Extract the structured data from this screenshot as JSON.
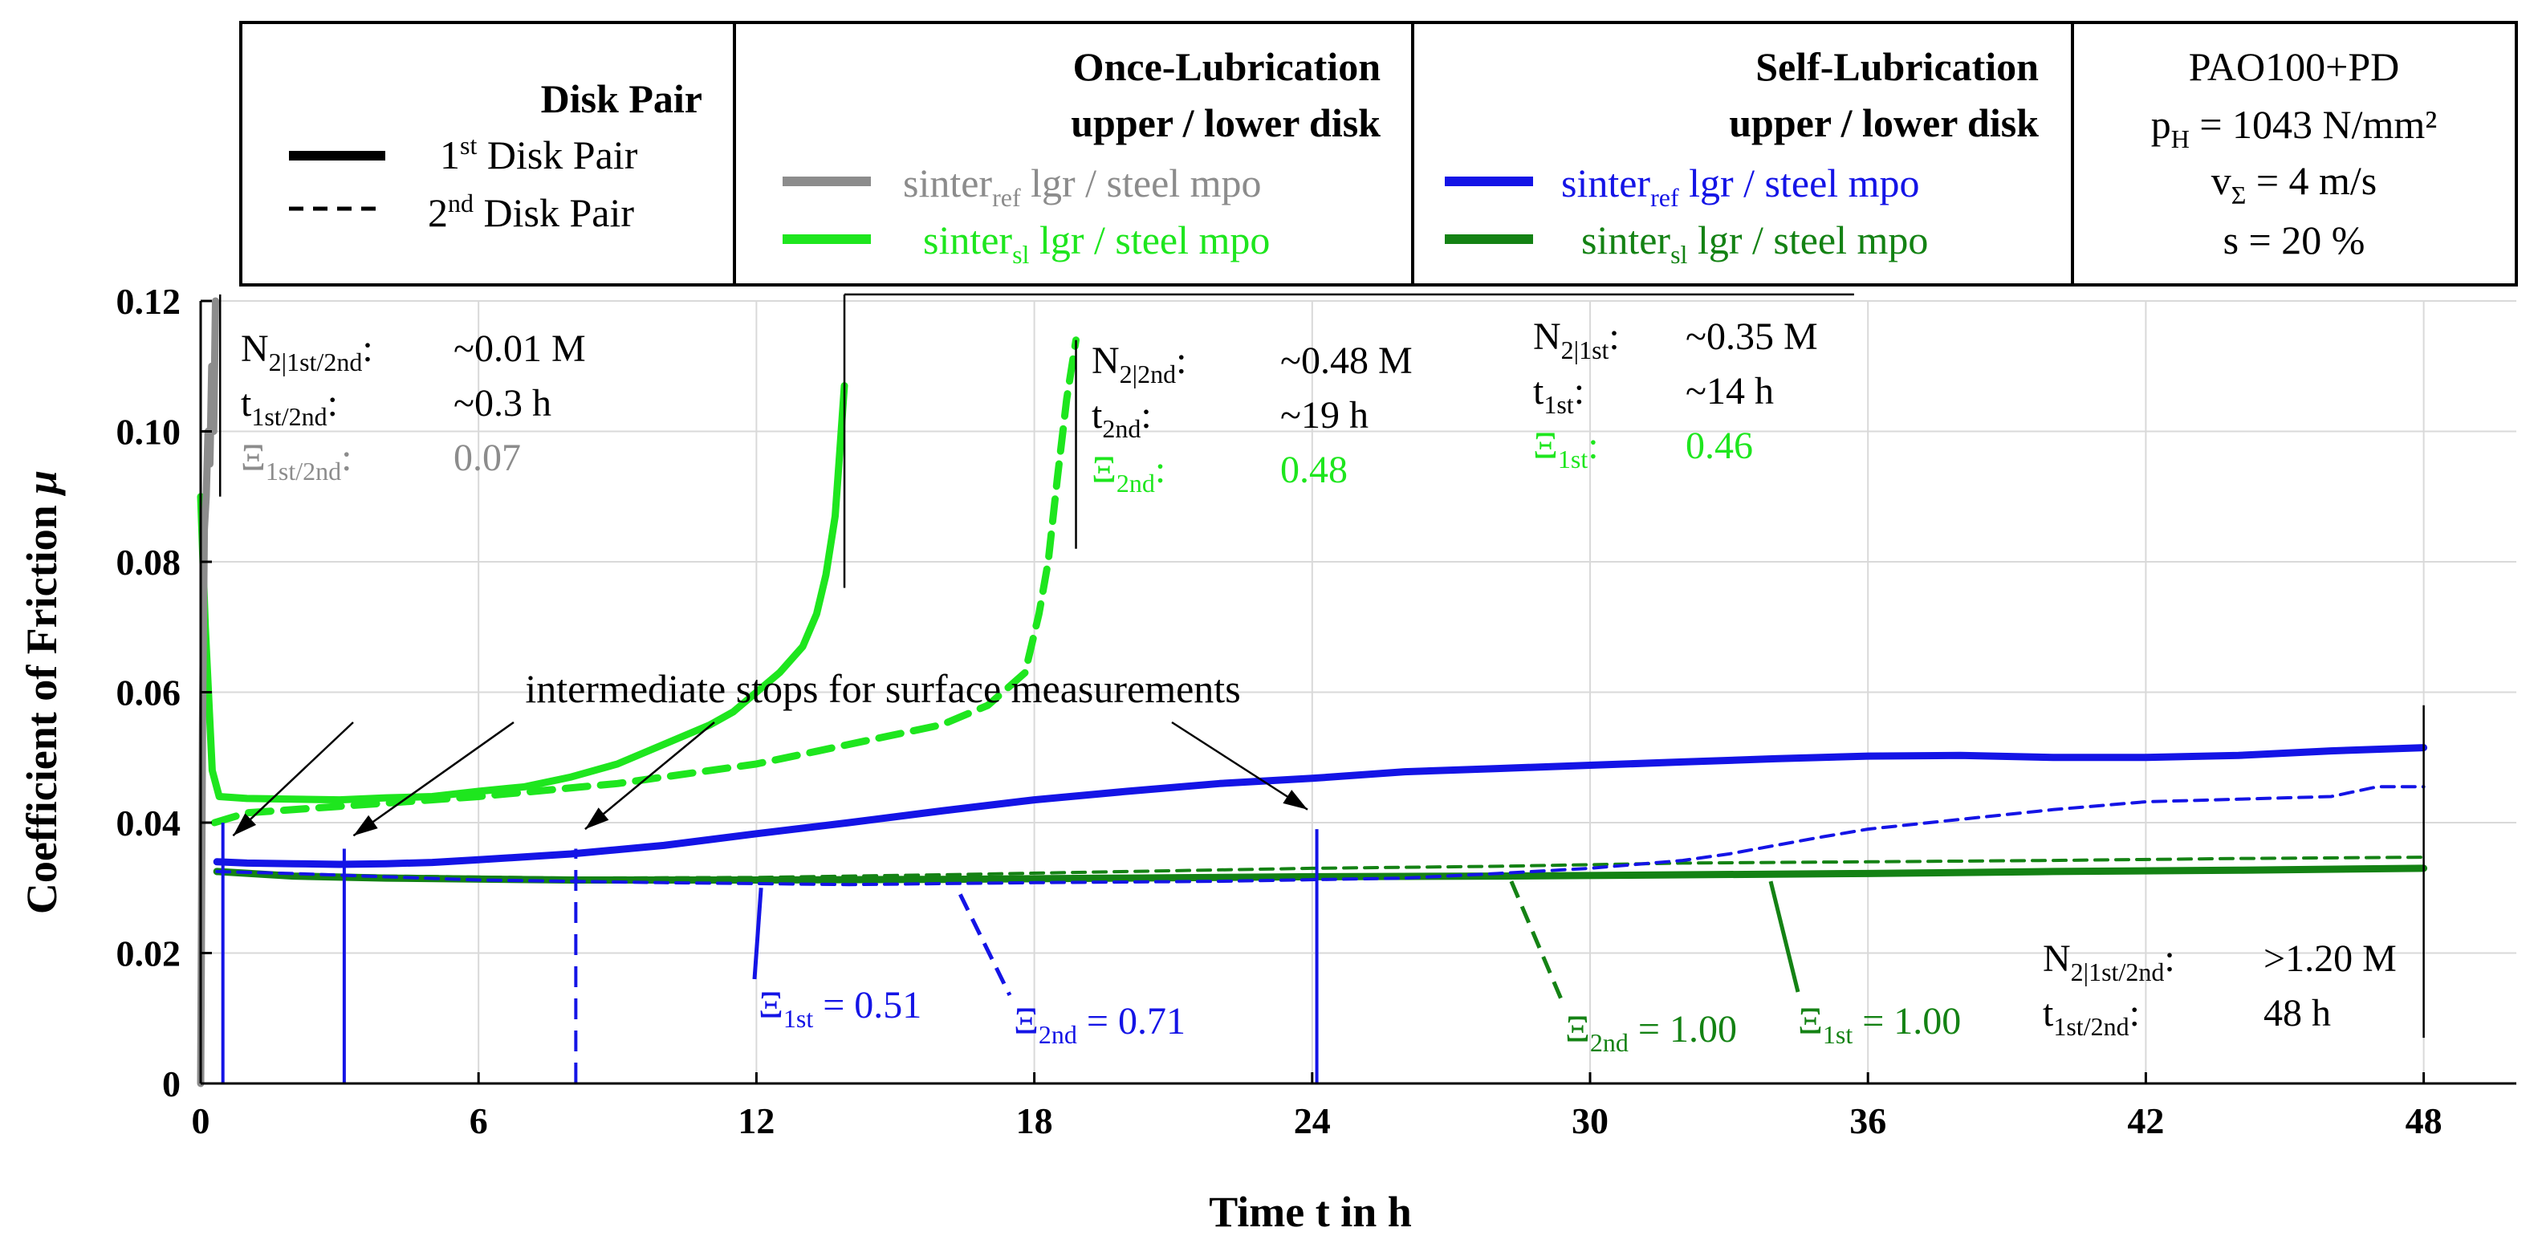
{
  "chart_data": {
    "type": "line",
    "xlabel": "Time t in h",
    "ylabel": "Coefficient of Friction",
    "ylabel_symbol": "μ",
    "xlim": [
      0,
      50
    ],
    "ylim": [
      0,
      0.12
    ],
    "x_ticks": [
      0,
      6,
      12,
      18,
      24,
      30,
      36,
      42,
      48
    ],
    "y_ticks": [
      0,
      0.02,
      0.04,
      0.06,
      0.08,
      0.1,
      0.12
    ],
    "y_tick_labels": [
      "0",
      "0.02",
      "0.04",
      "0.06",
      "0.08",
      "0.10",
      "0.12"
    ],
    "grid": true,
    "legend": {
      "disk_pair_title": "Disk Pair",
      "pair1": {
        "base": "1",
        "sup": "st",
        "text": " Disk Pair"
      },
      "pair2": {
        "base": "2",
        "sup": "nd",
        "text": " Disk Pair"
      },
      "once_title_1": "Once-Lubrication",
      "once_title_2": "upper / lower disk",
      "self_title_1": "Self-Lubrication",
      "self_title_2": "upper / lower disk",
      "entries": {
        "ref_once": {
          "a": "sinter",
          "sub": "ref",
          "b": " lgr / steel mpo"
        },
        "sl_once": {
          "a": "sinter",
          "sub": "sl",
          "b": " lgr / steel mpo"
        },
        "ref_self": {
          "a": "sinter",
          "sub": "ref",
          "b": " lgr / steel mpo"
        },
        "sl_self": {
          "a": "sinter",
          "sub": "sl",
          "b": " lgr / steel mpo"
        }
      },
      "conditions": {
        "line1": "PAO100+PD",
        "line2": {
          "a": "p",
          "sub": "H",
          "b": " = 1043 N/mm²"
        },
        "line3": {
          "a": "v",
          "sub": "Σ",
          "b": " = 4 m/s"
        },
        "line4": "s = 20 %"
      }
    },
    "colors": {
      "gray": "#8c8c8c",
      "light_green": "#1ee61e",
      "blue": "#1414e6",
      "dark_green": "#148214",
      "black": "#000000"
    },
    "annotation_text": "intermediate stops for surface measurements",
    "annotation_arrow_targets": [
      {
        "x": 0.7,
        "y": 0.038
      },
      {
        "x": 3.3,
        "y": 0.038
      },
      {
        "x": 8.3,
        "y": 0.039
      },
      {
        "x": 23.9,
        "y": 0.042
      }
    ],
    "info_blocks": {
      "b1": {
        "r1": {
          "a": "N",
          "sub": "2|1st/2nd",
          "b": ":",
          "val": "~0.01 M"
        },
        "r2": {
          "a": "t",
          "sub": "1st/2nd",
          "b": ":",
          "val": "~0.3 h"
        },
        "r3": {
          "a": "Ξ",
          "sub": "1st/2nd",
          "b": ":",
          "val": "0.07"
        }
      },
      "b2": {
        "r1": {
          "a": "N",
          "sub": "2|2nd",
          "b": ":",
          "val": "~0.48 M"
        },
        "r2": {
          "a": "t",
          "sub": "2nd",
          "b": ":",
          "val": "~19 h"
        },
        "r3": {
          "a": "Ξ",
          "sub": "2nd",
          "b": ":",
          "val": "0.48"
        }
      },
      "b3": {
        "r1": {
          "a": "N",
          "sub": "2|1st",
          "b": ":",
          "val": "~0.35 M"
        },
        "r2": {
          "a": "t",
          "sub": "1st",
          "b": ":",
          "val": "~14 h"
        },
        "r3": {
          "a": "Ξ",
          "sub": "1st",
          "b": ":",
          "val": "0.46"
        }
      },
      "b4": {
        "r1": {
          "a": "N",
          "sub": "2|1st/2nd",
          "b": ":",
          "val": ">1.20 M"
        },
        "r2": {
          "a": "t",
          "sub": "1st/2nd",
          "b": ":",
          "val": "48 h"
        }
      }
    },
    "xi_labels": {
      "blue_1st": {
        "a": "Ξ",
        "sub": "1st",
        "b": " = 0.51"
      },
      "blue_2nd": {
        "a": "Ξ",
        "sub": "2nd",
        "b": " = 0.71"
      },
      "green_2nd": {
        "a": "Ξ",
        "sub": "2nd",
        "b": " = 1.00"
      },
      "green_1st": {
        "a": "Ξ",
        "sub": "1st",
        "b": " = 1.00"
      }
    },
    "series": [
      {
        "name": "sinter_ref lgr / steel mpo, once-lubrication, 1st disk pair",
        "color_key": "gray",
        "dash": "solid",
        "width": "thick",
        "x": [
          0,
          0.04,
          0.08,
          0.12,
          0.16,
          0.2,
          0.24,
          0.28,
          0.32
        ],
        "y": [
          0.0,
          0.055,
          0.085,
          0.09,
          0.1,
          0.095,
          0.11,
          0.1,
          0.12
        ]
      },
      {
        "name": "sinter_sl lgr / steel mpo, once-lubrication, 1st disk pair",
        "color_key": "light_green",
        "dash": "solid",
        "width": "thick",
        "x": [
          0,
          0.1,
          0.25,
          0.4,
          1,
          2,
          3,
          4,
          5,
          6,
          7,
          8,
          9,
          10,
          11,
          11.5,
          12,
          12.5,
          13,
          13.3,
          13.5,
          13.7,
          13.8,
          13.9
        ],
        "y": [
          0.09,
          0.07,
          0.048,
          0.044,
          0.0437,
          0.0436,
          0.0435,
          0.0438,
          0.044,
          0.0448,
          0.0455,
          0.047,
          0.049,
          0.052,
          0.055,
          0.057,
          0.06,
          0.063,
          0.067,
          0.072,
          0.078,
          0.087,
          0.097,
          0.107
        ]
      },
      {
        "name": "sinter_sl lgr / steel mpo, once-lubrication, 2nd disk pair",
        "color_key": "light_green",
        "dash": "dashed",
        "width": "thick",
        "x": [
          0.3,
          1,
          3,
          6,
          9,
          12,
          14,
          16,
          17,
          17.8,
          18.1,
          18.3,
          18.5,
          18.7,
          18.9
        ],
        "y": [
          0.04,
          0.0415,
          0.0425,
          0.044,
          0.046,
          0.049,
          0.052,
          0.055,
          0.058,
          0.063,
          0.072,
          0.08,
          0.093,
          0.105,
          0.114
        ]
      },
      {
        "name": "sinter_ref lgr / steel mpo, self-lubrication, 1st disk pair",
        "color_key": "blue",
        "dash": "solid",
        "width": "thick",
        "x": [
          0.35,
          1,
          2,
          3,
          4,
          5,
          6,
          8,
          10,
          12,
          14,
          16,
          18,
          20,
          22,
          24,
          26,
          28,
          30,
          32,
          34,
          36,
          38,
          40,
          42,
          44,
          46,
          48
        ],
        "y": [
          0.034,
          0.0338,
          0.0337,
          0.0336,
          0.0337,
          0.0339,
          0.0343,
          0.0352,
          0.0365,
          0.0383,
          0.04,
          0.0418,
          0.0435,
          0.0448,
          0.046,
          0.0468,
          0.0478,
          0.0483,
          0.0488,
          0.0493,
          0.0498,
          0.0502,
          0.0503,
          0.05,
          0.05,
          0.0503,
          0.051,
          0.0515
        ]
      },
      {
        "name": "sinter_ref lgr / steel mpo, self-lubrication, 2nd disk pair",
        "color_key": "blue",
        "dash": "dashed",
        "width": "thin",
        "x": [
          0.35,
          2,
          6,
          10,
          14,
          18,
          22,
          26,
          28,
          30,
          32,
          33,
          34,
          35,
          36,
          38,
          40,
          42,
          44,
          46,
          47,
          48
        ],
        "y": [
          0.0325,
          0.0322,
          0.0312,
          0.0308,
          0.0305,
          0.0308,
          0.031,
          0.0315,
          0.0322,
          0.033,
          0.0342,
          0.0352,
          0.0365,
          0.0378,
          0.039,
          0.0405,
          0.042,
          0.0432,
          0.0436,
          0.044,
          0.0455,
          0.0455
        ]
      },
      {
        "name": "sinter_sl lgr / steel mpo, self-lubrication, 1st disk pair",
        "color_key": "dark_green",
        "dash": "solid",
        "width": "thick",
        "x": [
          0.35,
          2,
          4,
          8,
          12,
          16,
          20,
          24,
          28,
          32,
          36,
          40,
          44,
          48
        ],
        "y": [
          0.0325,
          0.0318,
          0.0315,
          0.0312,
          0.0312,
          0.0313,
          0.0315,
          0.0317,
          0.0318,
          0.032,
          0.0322,
          0.0325,
          0.0327,
          0.033
        ]
      },
      {
        "name": "sinter_sl lgr / steel mpo, self-lubrication, 2nd disk pair",
        "color_key": "dark_green",
        "dash": "dashed",
        "width": "thin",
        "x": [
          0.35,
          4,
          8,
          12,
          16,
          20,
          24,
          28,
          32,
          36,
          40,
          44,
          48
        ],
        "y": [
          0.0322,
          0.0318,
          0.0315,
          0.0316,
          0.032,
          0.0325,
          0.033,
          0.0333,
          0.0338,
          0.034,
          0.0342,
          0.0345,
          0.0347
        ]
      }
    ],
    "verticals": [
      {
        "x": 0.48,
        "y0": 0,
        "y1": 0.04,
        "color_key": "blue",
        "dash": "solid"
      },
      {
        "x": 3.1,
        "y0": 0,
        "y1": 0.036,
        "color_key": "blue",
        "dash": "solid"
      },
      {
        "x": 8.1,
        "y0": 0,
        "y1": 0.036,
        "color_key": "blue",
        "dash": "dashed"
      },
      {
        "x": 24.1,
        "y0": 0,
        "y1": 0.039,
        "color_key": "blue",
        "dash": "solid"
      },
      {
        "x": 0.42,
        "y0": 0.09,
        "y1": 0.121,
        "color_key": "black",
        "dash": "solid"
      },
      {
        "x": 13.9,
        "y0": 0.076,
        "y1": 0.121,
        "color_key": "black",
        "dash": "solid"
      },
      {
        "x": 18.9,
        "y0": 0.082,
        "y1": 0.114,
        "color_key": "black",
        "dash": "solid"
      },
      {
        "x": 48,
        "y0": 0.007,
        "y1": 0.058,
        "color_key": "black",
        "dash": "solid"
      }
    ],
    "horizontal_brackets": [
      {
        "x0": 13.9,
        "x1": 35.7,
        "y": 0.121,
        "color_key": "black"
      }
    ]
  }
}
